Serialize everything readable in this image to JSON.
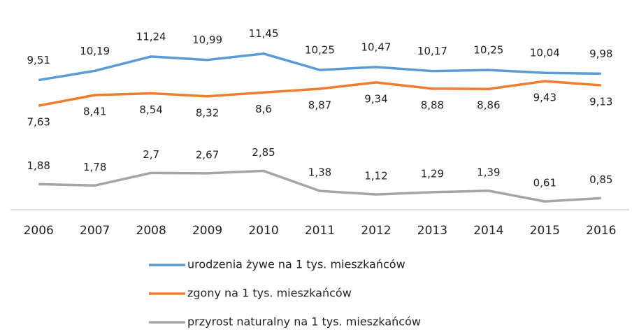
{
  "chart_data": {
    "type": "line",
    "categories": [
      "2006",
      "2007",
      "2008",
      "2009",
      "2010",
      "2011",
      "2012",
      "2013",
      "2014",
      "2015",
      "2016"
    ],
    "series": [
      {
        "name": "urodzenia żywe na 1 tys. mieszkańców",
        "color": "#5b9bd5",
        "values": [
          9.51,
          10.19,
          11.24,
          10.99,
          11.45,
          10.25,
          10.47,
          10.17,
          10.25,
          10.04,
          9.98
        ],
        "value_labels": [
          "9,51",
          "10,19",
          "11,24",
          "10,99",
          "11,45",
          "10,25",
          "10,47",
          "10,17",
          "10,25",
          "10,04",
          "9,98"
        ]
      },
      {
        "name": "zgony na 1 tys. mieszkańców",
        "color": "#ed7d31",
        "values": [
          7.63,
          8.41,
          8.54,
          8.32,
          8.6,
          8.87,
          9.34,
          8.88,
          8.86,
          9.43,
          9.13
        ],
        "value_labels": [
          "7,63",
          "8,41",
          "8,54",
          "8,32",
          "8,6",
          "8,87",
          "9,34",
          "8,88",
          "8,86",
          "9,43",
          "9,13"
        ]
      },
      {
        "name": "przyrost naturalny na 1 tys. mieszkańców",
        "color": "#a5a5a5",
        "values": [
          1.88,
          1.78,
          2.7,
          2.67,
          2.85,
          1.38,
          1.12,
          1.29,
          1.39,
          0.61,
          0.85
        ],
        "value_labels": [
          "1,88",
          "1,78",
          "2,7",
          "2,67",
          "2,85",
          "1,38",
          "1,12",
          "1,29",
          "1,39",
          "0,61",
          "0,85"
        ]
      }
    ],
    "ylim": [
      0,
      14
    ]
  }
}
